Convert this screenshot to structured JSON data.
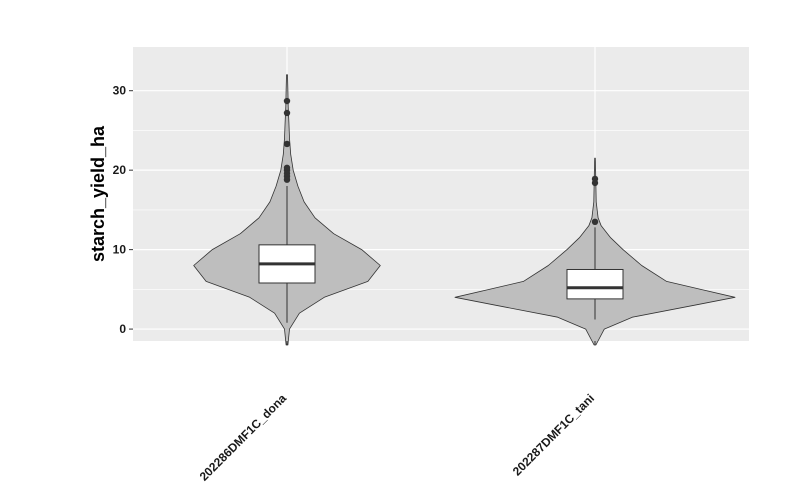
{
  "chart_data": {
    "type": "violin",
    "ylabel": "starch_yield_ha",
    "xlabel": "",
    "ylim": [
      -1.5,
      35.5
    ],
    "y_ticks": [
      0,
      10,
      20,
      30
    ],
    "y_tick_labels": [
      "0",
      "10",
      "20",
      "30"
    ],
    "grid": true,
    "legend": "none",
    "colors": {
      "panel": "#ebebeb",
      "grid": "#ffffff",
      "violin_fill": "#bebebe",
      "outline": "#333333",
      "box_fill": "#ffffff",
      "point": "#333333"
    },
    "groups": [
      {
        "category": "202286DMF1C_dona",
        "violin_range": [
          -2,
          32
        ],
        "density": [
          [
            -2,
            0.003
          ],
          [
            0,
            0.008
          ],
          [
            2,
            0.04
          ],
          [
            4,
            0.12
          ],
          [
            6,
            0.26
          ],
          [
            8,
            0.3
          ],
          [
            10,
            0.24
          ],
          [
            12,
            0.15
          ],
          [
            14,
            0.09
          ],
          [
            16,
            0.055
          ],
          [
            18,
            0.035
          ],
          [
            20,
            0.02
          ],
          [
            22,
            0.012
          ],
          [
            24,
            0.008
          ],
          [
            26,
            0.006
          ],
          [
            28,
            0.004
          ],
          [
            30,
            0.003
          ],
          [
            32,
            0.0015
          ]
        ],
        "box": {
          "lower_whisker": 0.8,
          "q1": 5.8,
          "median": 8.2,
          "q3": 10.6,
          "upper_whisker": 18
        },
        "outliers": [
          18.8,
          19.2,
          19.6,
          20.0,
          20.3,
          23.3,
          27.2,
          28.7
        ]
      },
      {
        "category": "202287DMF1C_tani",
        "violin_range": [
          -2,
          21.5
        ],
        "density": [
          [
            -2,
            0.003
          ],
          [
            0,
            0.03
          ],
          [
            1.5,
            0.12
          ],
          [
            3,
            0.32
          ],
          [
            4,
            0.45
          ],
          [
            5,
            0.34
          ],
          [
            6,
            0.23
          ],
          [
            8,
            0.15
          ],
          [
            10,
            0.09
          ],
          [
            11.5,
            0.05
          ],
          [
            13,
            0.02
          ],
          [
            14,
            0.01
          ],
          [
            16,
            0.004
          ],
          [
            18,
            0.003
          ],
          [
            20,
            0.002
          ],
          [
            21.5,
            0.001
          ]
        ],
        "box": {
          "lower_whisker": 1.2,
          "q1": 3.8,
          "median": 5.2,
          "q3": 7.5,
          "upper_whisker": 12.8
        },
        "outliers": [
          13.5,
          18.4,
          18.9
        ]
      }
    ]
  }
}
